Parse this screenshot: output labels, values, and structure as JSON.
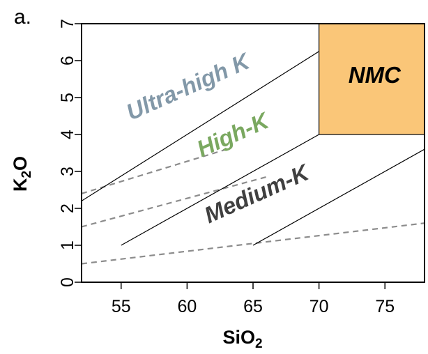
{
  "panel_label": "a.",
  "chart_data": {
    "type": "line",
    "xlabel_main": "SiO",
    "xlabel_sub": "2",
    "ylabel_main": "K",
    "ylabel_sub": "2",
    "ylabel_tail": "O",
    "xlim": [
      52,
      78
    ],
    "ylim": [
      0,
      7
    ],
    "xticks": [
      55,
      60,
      65,
      70,
      75
    ],
    "yticks": [
      0,
      1,
      2,
      3,
      4,
      5,
      6,
      7
    ],
    "grid": false,
    "solid_lines": [
      {
        "x": [
          52,
          70
        ],
        "y": [
          2.2,
          6.25
        ]
      },
      {
        "x": [
          55,
          70
        ],
        "y": [
          1.0,
          4.0
        ]
      },
      {
        "x": [
          65,
          78
        ],
        "y": [
          1.0,
          3.6
        ]
      }
    ],
    "dashed_lines": [
      {
        "x": [
          52,
          63
        ],
        "y": [
          2.4,
          3.6
        ]
      },
      {
        "x": [
          52,
          66
        ],
        "y": [
          1.5,
          2.85
        ]
      },
      {
        "x": [
          52,
          78
        ],
        "y": [
          0.5,
          1.6
        ]
      }
    ],
    "nmc_box": {
      "x": [
        70,
        78
      ],
      "y": [
        4,
        7
      ],
      "label": "NMC",
      "fill": "#fac678"
    },
    "region_labels": [
      {
        "text": "Ultra-high K",
        "x": 60.3,
        "y": 5.1,
        "color": "#8298a8",
        "angle": -24
      },
      {
        "text": "High-K",
        "x": 63.7,
        "y": 3.8,
        "color": "#7aa860",
        "angle": -24
      },
      {
        "text": "Medium-K",
        "x": 65.5,
        "y": 2.2,
        "color": "#404040",
        "angle": -24
      }
    ],
    "colors": {
      "solid": "#000000",
      "dashed": "#8c8c8c",
      "axis": "#000000"
    }
  }
}
